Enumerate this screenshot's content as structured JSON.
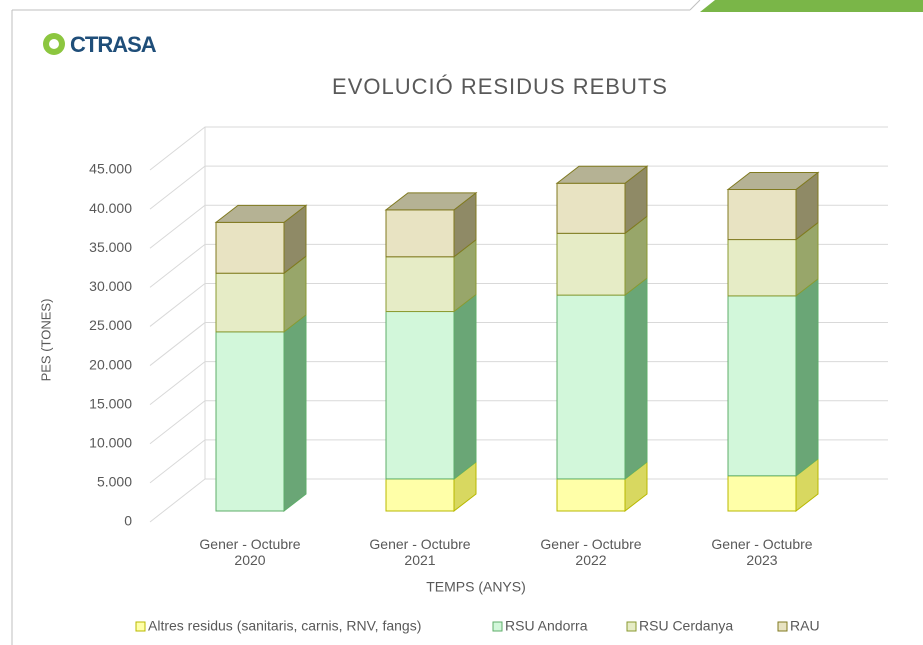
{
  "logo": "CTRASA",
  "chart_data": {
    "type": "bar3d_stacked",
    "title": "EVOLUCIÓ RESIDUS REBUTS",
    "x_label": "TEMPS (ANYS)",
    "y_label": "PES (TONES)",
    "categories": [
      "Gener - Octubre 2020",
      "Gener - Octubre 2021",
      "Gener - Octubre 2022",
      "Gener - Octubre 2023"
    ],
    "series": [
      {
        "name": "Altres residus (sanitaris, carnis, RNV, fangs)",
        "color": "#ffffa8",
        "side": "#d8d860",
        "stroke": "#b8b800",
        "values": [
          0,
          4100,
          4100,
          4500
        ]
      },
      {
        "name": "RSU Andorra",
        "color": "#d2f7da",
        "side": "#6aa676",
        "stroke": "#5fae6a",
        "values": [
          22900,
          21400,
          23500,
          23000
        ]
      },
      {
        "name": "RSU Cerdanya",
        "color": "#e6ecc6",
        "side": "#98a66a",
        "stroke": "#8a9a30",
        "values": [
          7500,
          7000,
          7900,
          7200
        ]
      },
      {
        "name": "RAU",
        "color": "#e8e3c2",
        "side": "#8f8a66",
        "stroke": "#807a20",
        "values": [
          6500,
          6000,
          6400,
          6400
        ]
      }
    ],
    "ylim": [
      0,
      45000
    ],
    "yticks": [
      0,
      {
        "value": 5000,
        "label": "5.000"
      },
      {
        "value": 10000,
        "label": "10.000"
      },
      {
        "value": 15000,
        "label": "15.000"
      },
      {
        "value": 20000,
        "label": "20.000"
      },
      {
        "value": 25000,
        "label": "25.000"
      },
      {
        "value": 30000,
        "label": "30.000"
      },
      {
        "value": 35000,
        "label": "35.000"
      },
      {
        "value": 40000,
        "label": "40.000"
      },
      {
        "value": 45000,
        "label": "45.000"
      }
    ],
    "grid": true,
    "legend": "bottom"
  }
}
